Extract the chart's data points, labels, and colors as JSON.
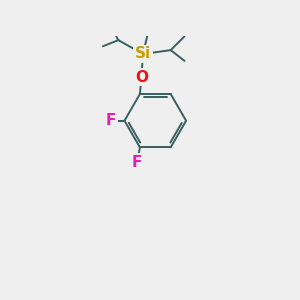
{
  "background_color": "#efefef",
  "bond_color": "#3a5f5f",
  "Si_color": "#c8a000",
  "O_color": "#ee1111",
  "F_color": "#e020b0",
  "Si_label": "Si",
  "O_label": "O",
  "F_label": "F",
  "figsize": [
    3.0,
    3.0
  ],
  "dpi": 100
}
